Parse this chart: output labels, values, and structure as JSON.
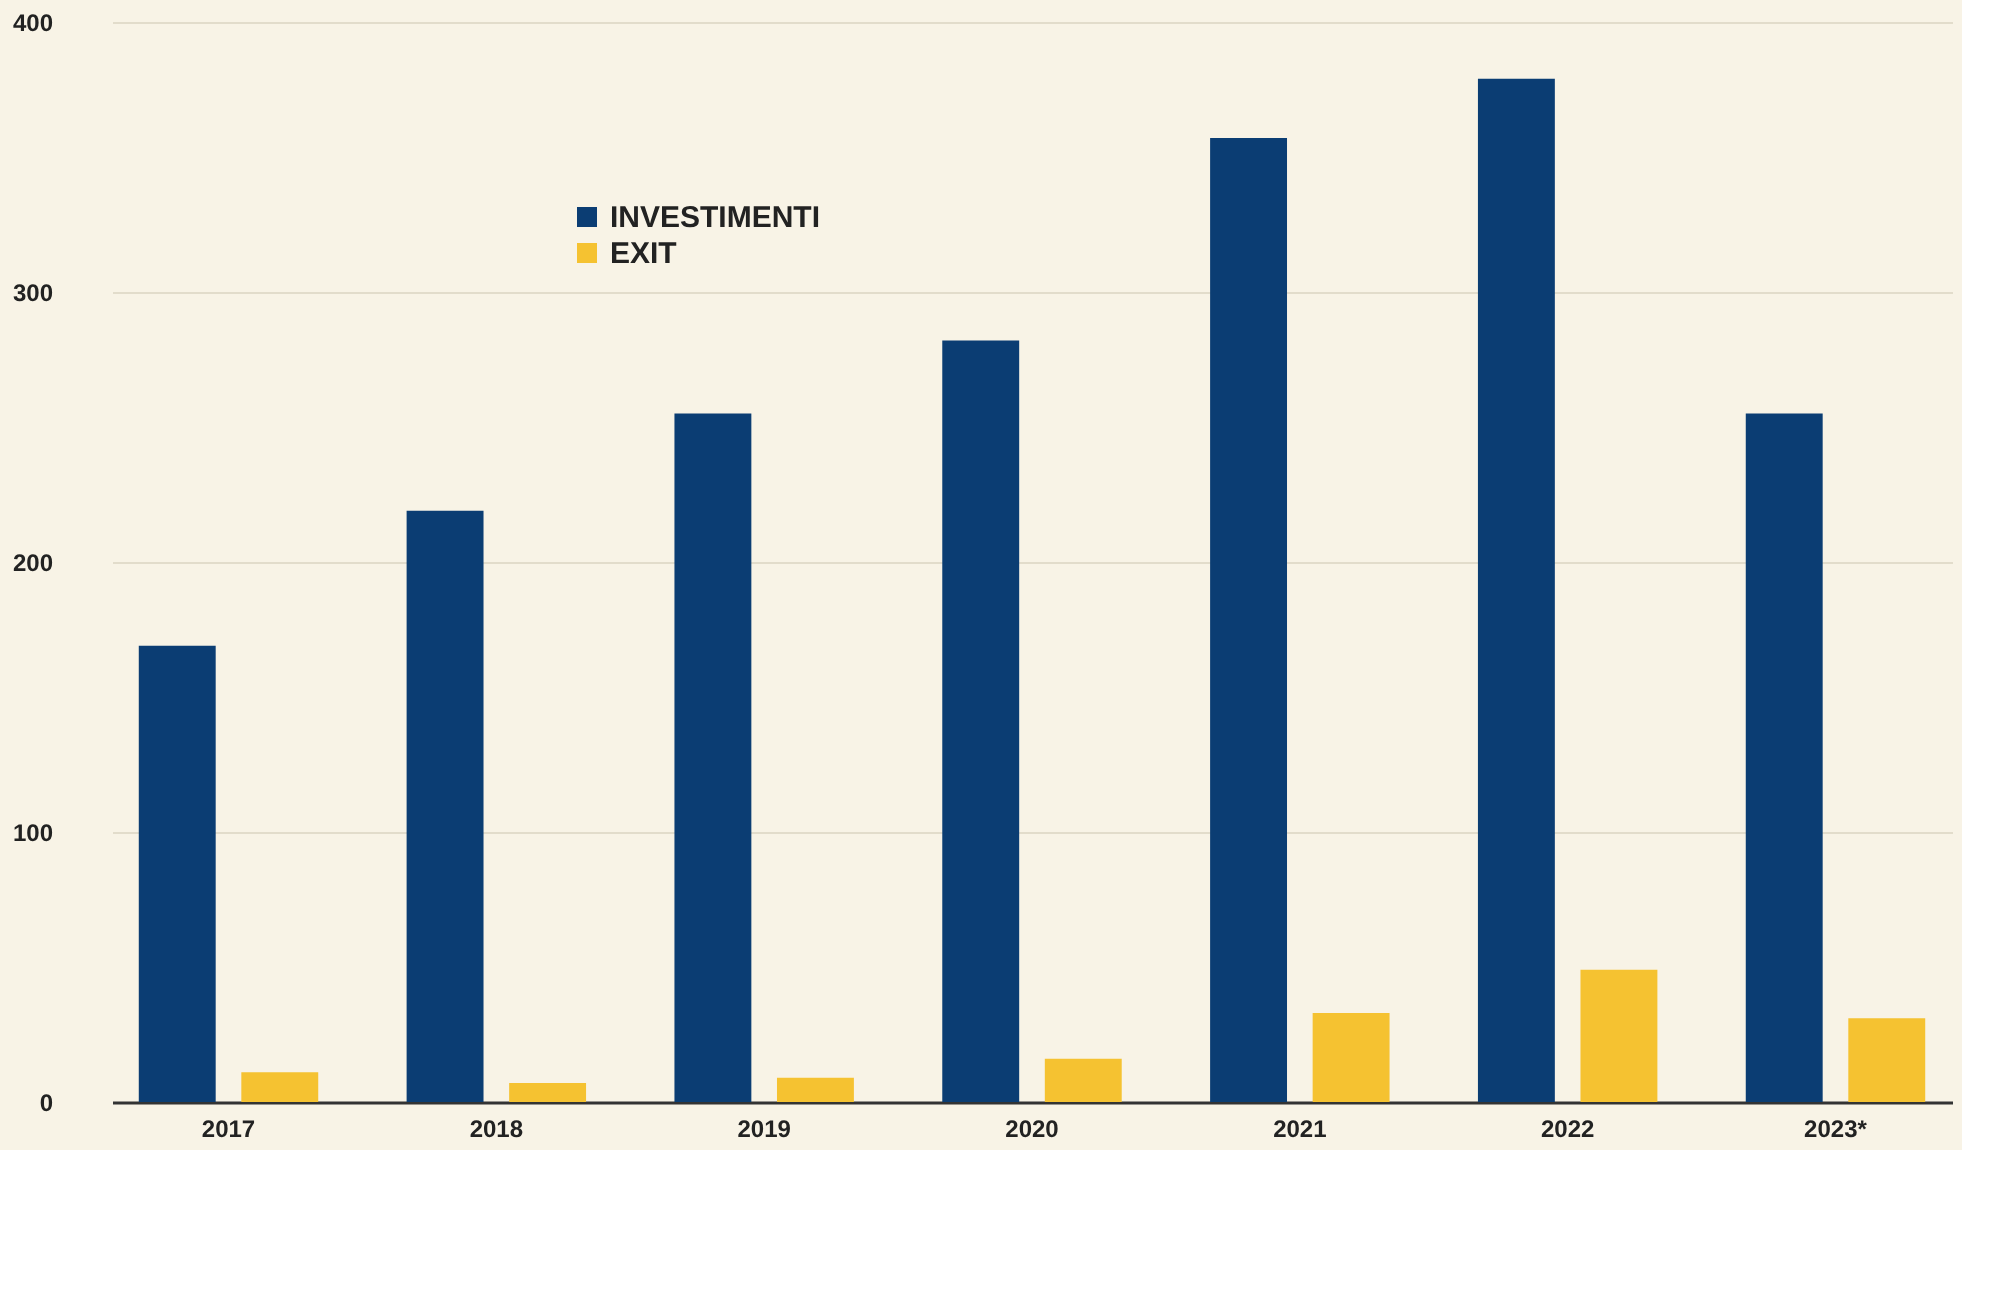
{
  "chart_data": {
    "type": "bar",
    "categories": [
      "2017",
      "2018",
      "2019",
      "2020",
      "2021",
      "2022",
      "2023*"
    ],
    "series": [
      {
        "name": "INVESTIMENTI",
        "color": "#0b3d73",
        "values": [
          169,
          219,
          255,
          282,
          357,
          379,
          255
        ]
      },
      {
        "name": "EXIT",
        "color": "#f5c231",
        "values": [
          11,
          7,
          9,
          16,
          33,
          49,
          31
        ]
      }
    ],
    "ylim": [
      0,
      400
    ],
    "yticks": [
      0,
      100,
      200,
      300,
      400
    ],
    "grid": "y",
    "legend": "top left"
  }
}
